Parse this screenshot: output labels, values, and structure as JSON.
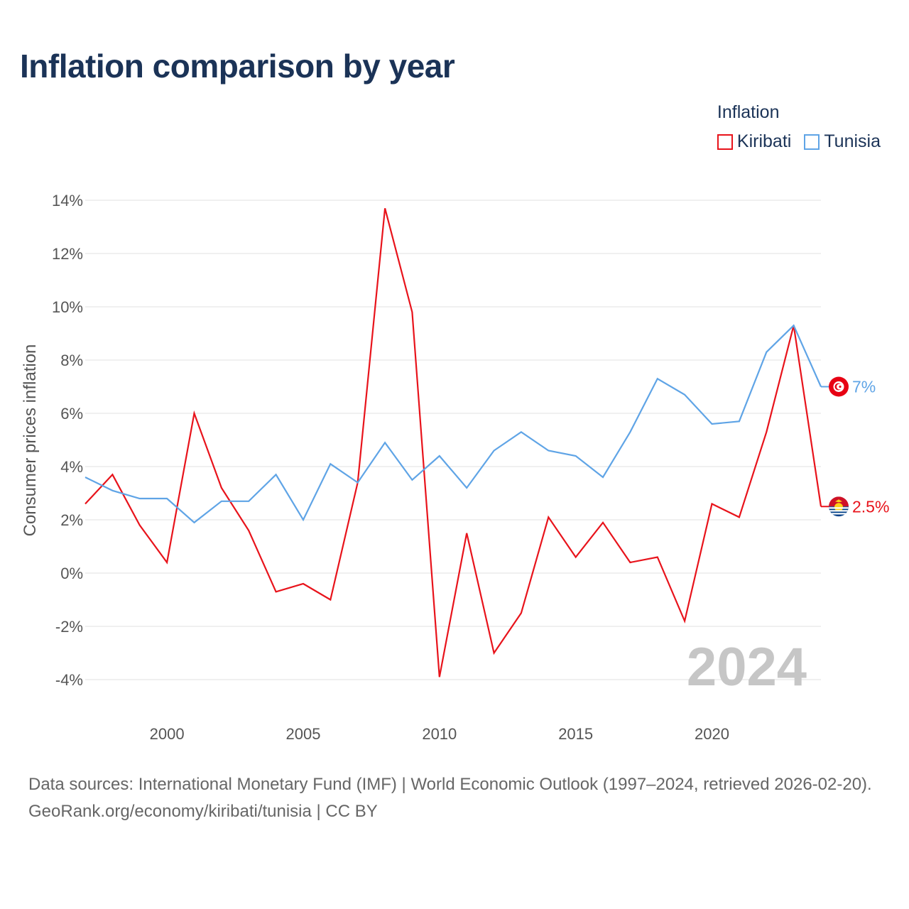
{
  "title": "Inflation comparison by year",
  "legend": {
    "title": "Inflation",
    "items": [
      {
        "label": "Kiribati",
        "color": "#e8131b"
      },
      {
        "label": "Tunisia",
        "color": "#5fa4e6"
      }
    ]
  },
  "chart_data": {
    "type": "line",
    "title": "Inflation comparison by year",
    "ylabel": "Consumer prices inflation",
    "xlabel": "",
    "ylim": [
      -4,
      14
    ],
    "xlim": [
      1997,
      2024
    ],
    "yticks": [
      14,
      12,
      10,
      8,
      6,
      4,
      2,
      0,
      -2,
      -4
    ],
    "ytick_labels": [
      "14%",
      "12%",
      "10%",
      "8%",
      "6%",
      "4%",
      "2%",
      "0%",
      "-2%",
      "-4%"
    ],
    "xticks": [
      2000,
      2005,
      2010,
      2015,
      2020
    ],
    "xtick_labels": [
      "2000",
      "2005",
      "2010",
      "2015",
      "2020"
    ],
    "year_overlay": "2024",
    "x": [
      1997,
      1998,
      1999,
      2000,
      2001,
      2002,
      2003,
      2004,
      2005,
      2006,
      2007,
      2008,
      2009,
      2010,
      2011,
      2012,
      2013,
      2014,
      2015,
      2016,
      2017,
      2018,
      2019,
      2020,
      2021,
      2022,
      2023,
      2024
    ],
    "series": [
      {
        "name": "Kiribati",
        "color": "#e8131b",
        "end_label": "2.5%",
        "icon": "kiribati-flag-icon",
        "values": [
          2.6,
          3.7,
          1.8,
          0.4,
          6.0,
          3.2,
          1.6,
          -0.7,
          -0.4,
          -1.0,
          3.4,
          13.7,
          9.8,
          -3.9,
          1.5,
          -3.0,
          -1.5,
          2.1,
          0.6,
          1.9,
          0.4,
          0.6,
          -1.8,
          2.6,
          2.1,
          5.3,
          9.3,
          2.5
        ]
      },
      {
        "name": "Tunisia",
        "color": "#5fa4e6",
        "end_label": "7%",
        "icon": "tunisia-flag-icon",
        "values": [
          3.6,
          3.1,
          2.8,
          2.8,
          1.9,
          2.7,
          2.7,
          3.7,
          2.0,
          4.1,
          3.4,
          4.9,
          3.5,
          4.4,
          3.2,
          4.6,
          5.3,
          4.6,
          4.4,
          3.6,
          5.3,
          7.3,
          6.7,
          5.6,
          5.7,
          8.3,
          9.3,
          7.0
        ]
      }
    ]
  },
  "footer": {
    "sources": "Data sources: International Monetary Fund (IMF) | World Economic Outlook (1997–2024, retrieved 2026-02-20).",
    "credit": "GeoRank.org/economy/kiribati/tunisia | CC BY"
  }
}
